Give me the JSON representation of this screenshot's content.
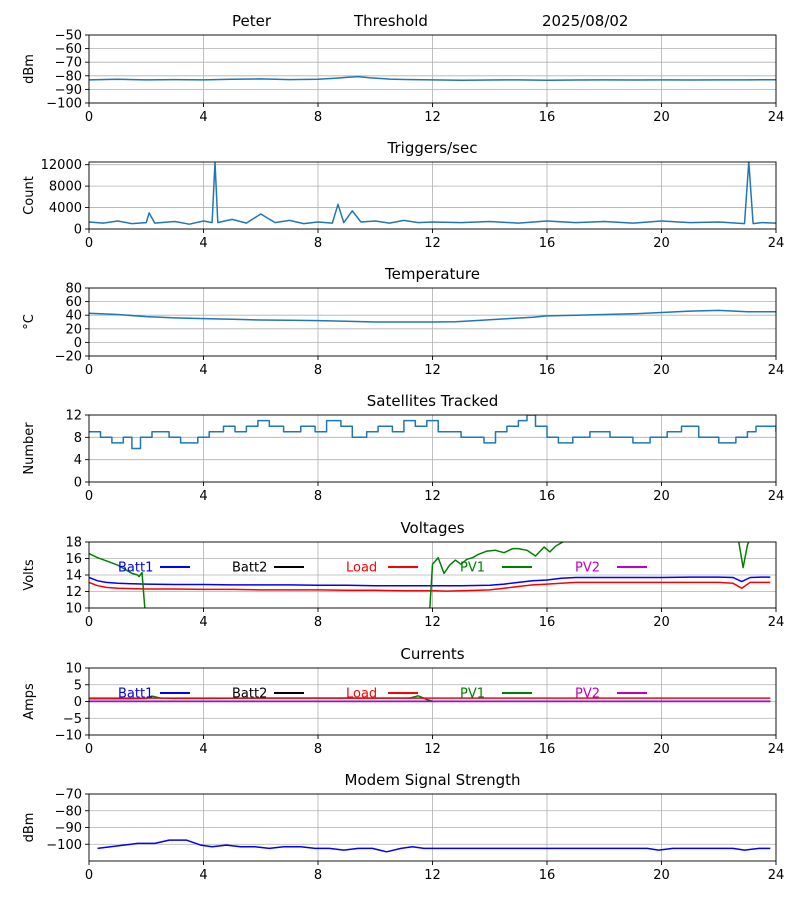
{
  "header": {
    "station": "Peter",
    "label": "Threshold",
    "date": "2025/08/02"
  },
  "colors": {
    "series_default": "#1f77b4",
    "grid": "#b0b0b0",
    "batt1": "#0000ff",
    "batt2": "#000000",
    "load": "#ff0000",
    "pv1": "#008000",
    "pv2": "#bf00bf"
  },
  "chart_data": [
    {
      "id": "threshold",
      "type": "line",
      "title": "",
      "xlabel": "",
      "ylabel": "dBm",
      "xlim": [
        0,
        24
      ],
      "ylim": [
        -100,
        -50
      ],
      "xticks": [
        0,
        4,
        8,
        12,
        16,
        20,
        24
      ],
      "yticks": [
        -100,
        -90,
        -80,
        -70,
        -60,
        -50
      ],
      "ytick_labels": [
        "−100",
        "−90",
        "−80",
        "−70",
        "−60",
        "−50"
      ],
      "grid": true,
      "series": [
        {
          "color": "#1f77b4",
          "width": 1.5,
          "x": [
            0,
            1,
            2,
            3,
            4,
            5,
            6,
            7,
            8,
            8.6,
            9.0,
            9.4,
            9.8,
            10.5,
            11,
            12,
            13,
            14,
            15,
            16,
            17,
            18,
            19,
            20,
            21,
            22,
            23,
            24
          ],
          "y": [
            -83,
            -82.6,
            -83,
            -82.8,
            -83,
            -82.5,
            -82.3,
            -82.8,
            -82.5,
            -81.8,
            -81.2,
            -80.6,
            -81.5,
            -82.4,
            -82.7,
            -83,
            -83.2,
            -83.1,
            -83,
            -83.2,
            -83.1,
            -83,
            -83.1,
            -83,
            -83.1,
            -83,
            -83,
            -82.9
          ]
        }
      ]
    },
    {
      "id": "triggers",
      "type": "line",
      "title": "Triggers/sec",
      "xlabel": "",
      "ylabel": "Count",
      "xlim": [
        0,
        24
      ],
      "ylim": [
        0,
        12500
      ],
      "xticks": [
        0,
        4,
        8,
        12,
        16,
        20,
        24
      ],
      "yticks": [
        0,
        4000,
        8000,
        12000
      ],
      "ytick_labels": [
        "0",
        "4000",
        "8000",
        "12000"
      ],
      "grid": true,
      "series": [
        {
          "color": "#1f77b4",
          "width": 1.5,
          "x": [
            0,
            0.5,
            1,
            1.5,
            2,
            2.1,
            2.3,
            3,
            3.5,
            4,
            4.3,
            4.4,
            4.5,
            5,
            5.5,
            6,
            6.5,
            7,
            7.5,
            8,
            8.5,
            8.7,
            8.9,
            9.2,
            9.5,
            10,
            10.5,
            11,
            11.5,
            12,
            13,
            14,
            15,
            16,
            17,
            18,
            19,
            20,
            21,
            22,
            22.9,
            23.05,
            23.2,
            23.5,
            24
          ],
          "y": [
            1300,
            1100,
            1500,
            1000,
            1200,
            3000,
            1100,
            1400,
            900,
            1500,
            1200,
            12500,
            1200,
            1800,
            1100,
            2800,
            1200,
            1600,
            1000,
            1300,
            1100,
            4600,
            1200,
            3400,
            1300,
            1500,
            1100,
            1600,
            1200,
            1300,
            1200,
            1400,
            1100,
            1500,
            1200,
            1400,
            1100,
            1500,
            1200,
            1300,
            1000,
            12500,
            1000,
            1200,
            1100
          ]
        }
      ]
    },
    {
      "id": "temperature",
      "type": "line",
      "title": "Temperature",
      "xlabel": "",
      "ylabel": "°C",
      "xlim": [
        0,
        24
      ],
      "ylim": [
        -20,
        80
      ],
      "xticks": [
        0,
        4,
        8,
        12,
        16,
        20,
        24
      ],
      "yticks": [
        -20,
        0,
        20,
        40,
        60,
        80
      ],
      "ytick_labels": [
        "−20",
        "0",
        "20",
        "40",
        "60",
        "80"
      ],
      "grid": true,
      "series": [
        {
          "color": "#1f77b4",
          "width": 1.5,
          "x": [
            0,
            1,
            2,
            3,
            4,
            5,
            6,
            7,
            8,
            9,
            10,
            11,
            12,
            12.8,
            13.5,
            14.5,
            15.5,
            16,
            17,
            18,
            19,
            20,
            21,
            22,
            23,
            24
          ],
          "y": [
            43,
            41,
            38,
            36,
            35,
            34,
            33,
            32.5,
            32,
            31,
            30,
            30,
            30,
            30.5,
            32,
            34.5,
            37,
            39,
            40,
            41,
            42,
            44,
            46,
            47,
            45,
            45
          ]
        }
      ]
    },
    {
      "id": "satellites",
      "type": "line",
      "title": "Satellites Tracked",
      "xlabel": "",
      "ylabel": "Number",
      "xlim": [
        0,
        24
      ],
      "ylim": [
        0,
        12
      ],
      "xticks": [
        0,
        4,
        8,
        12,
        16,
        20,
        24
      ],
      "yticks": [
        0,
        4,
        8,
        12
      ],
      "ytick_labels": [
        "0",
        "4",
        "8",
        "12"
      ],
      "grid": true,
      "series": [
        {
          "color": "#1f77b4",
          "width": 1.5,
          "step": true,
          "x": [
            0,
            0.4,
            0.8,
            1.2,
            1.5,
            1.8,
            2.2,
            2.8,
            3.2,
            3.8,
            4.2,
            4.7,
            5.1,
            5.5,
            5.9,
            6.3,
            6.8,
            7.4,
            7.9,
            8.3,
            8.8,
            9.2,
            9.7,
            10.1,
            10.6,
            11.0,
            11.4,
            11.8,
            12.2,
            13.0,
            13.8,
            14.2,
            14.6,
            15.0,
            15.3,
            15.6,
            16.0,
            16.4,
            16.9,
            17.5,
            18.2,
            19.0,
            19.6,
            20.2,
            20.7,
            21.3,
            22.0,
            22.6,
            23.0,
            23.3,
            24
          ],
          "y": [
            9,
            8,
            7,
            8,
            6,
            8,
            9,
            8,
            7,
            8,
            9,
            10,
            9,
            10,
            11,
            10,
            9,
            10,
            9,
            11,
            10,
            8,
            9,
            10,
            9,
            11,
            10,
            11,
            9,
            8,
            7,
            9,
            10,
            11,
            12,
            10,
            8,
            7,
            8,
            9,
            8,
            7,
            8,
            9,
            10,
            8,
            7,
            8,
            9,
            10,
            9
          ]
        }
      ]
    },
    {
      "id": "voltages",
      "type": "line",
      "title": "Voltages",
      "xlabel": "",
      "ylabel": "Volts",
      "xlim": [
        0,
        24
      ],
      "ylim": [
        10,
        18
      ],
      "xticks": [
        0,
        4,
        8,
        12,
        16,
        20,
        24
      ],
      "yticks": [
        10,
        12,
        14,
        16,
        18
      ],
      "ytick_labels": [
        "10",
        "12",
        "14",
        "16",
        "18"
      ],
      "grid": true,
      "legend": [
        "Batt1",
        "Batt2",
        "Load",
        "PV1",
        "PV2"
      ],
      "series": [
        {
          "name": "Batt1",
          "color": "#0000ff",
          "width": 1.5,
          "x": [
            0,
            0.3,
            0.6,
            1,
            1.5,
            2,
            3,
            4,
            5,
            6,
            7,
            8,
            9,
            10,
            11,
            12,
            13,
            14,
            14.5,
            15,
            15.5,
            16,
            16.5,
            17,
            18,
            19,
            20,
            21,
            22,
            22.5,
            22.8,
            23.1,
            23.5,
            23.8
          ],
          "y": [
            13.7,
            13.3,
            13.1,
            13.0,
            12.95,
            12.9,
            12.85,
            12.85,
            12.8,
            12.8,
            12.8,
            12.75,
            12.75,
            12.7,
            12.7,
            12.7,
            12.7,
            12.75,
            12.9,
            13.1,
            13.3,
            13.4,
            13.6,
            13.7,
            13.7,
            13.7,
            13.7,
            13.75,
            13.75,
            13.7,
            13.2,
            13.7,
            13.75,
            13.75
          ]
        },
        {
          "name": "Load",
          "color": "#ff0000",
          "width": 1.5,
          "x": [
            0,
            0.3,
            0.6,
            1,
            1.5,
            2,
            3,
            4,
            5,
            6,
            7,
            8,
            9,
            10,
            11,
            12,
            12.5,
            13,
            14,
            14.5,
            15,
            15.5,
            16,
            16.5,
            17,
            18,
            19,
            20,
            21,
            22,
            22.5,
            22.8,
            23.1,
            23.5,
            23.8
          ],
          "y": [
            13.1,
            12.7,
            12.5,
            12.4,
            12.35,
            12.3,
            12.3,
            12.25,
            12.25,
            12.2,
            12.2,
            12.2,
            12.15,
            12.15,
            12.1,
            12.1,
            12.05,
            12.1,
            12.2,
            12.4,
            12.6,
            12.8,
            12.9,
            13.0,
            13.1,
            13.1,
            13.1,
            13.1,
            13.1,
            13.1,
            13.0,
            12.4,
            13.1,
            13.1,
            13.1
          ]
        },
        {
          "name": "PV1",
          "color": "#008000",
          "width": 1.5,
          "clip": true,
          "x": [
            0,
            0.3,
            0.7,
            1.0,
            1.3,
            1.5,
            1.7,
            1.75,
            1.85,
            1.95
          ],
          "y": [
            16.6,
            16.1,
            15.6,
            15.2,
            14.6,
            14.2,
            14.0,
            13.8,
            14.3,
            10.0
          ]
        },
        {
          "name": "PV1",
          "color": "#008000",
          "width": 1.5,
          "clip": true,
          "x": [
            11.9,
            12.0,
            12.2,
            12.4,
            12.6,
            12.8,
            13.0,
            13.2,
            13.4,
            13.6,
            13.9,
            14.2,
            14.5,
            14.8,
            15.0,
            15.3,
            15.6,
            15.9,
            16.1,
            16.3,
            16.6,
            16.9,
            17.2
          ],
          "y": [
            9.5,
            15.3,
            16.1,
            14.2,
            15.2,
            15.8,
            15.3,
            15.9,
            16.1,
            16.5,
            16.9,
            17.0,
            16.7,
            17.2,
            17.2,
            17.0,
            16.3,
            17.4,
            16.8,
            17.5,
            18.1,
            18.5,
            19.0
          ]
        },
        {
          "name": "PV1",
          "color": "#008000",
          "width": 1.5,
          "clip": true,
          "x": [
            22.55,
            22.7,
            22.85,
            23.0,
            23.15
          ],
          "y": [
            19.0,
            18.0,
            14.9,
            17.6,
            19.0
          ]
        }
      ]
    },
    {
      "id": "currents",
      "type": "line",
      "title": "Currents",
      "xlabel": "",
      "ylabel": "Amps",
      "xlim": [
        0,
        24
      ],
      "ylim": [
        -10,
        10
      ],
      "xticks": [
        0,
        4,
        8,
        12,
        16,
        20,
        24
      ],
      "yticks": [
        -10,
        -5,
        0,
        5,
        10
      ],
      "ytick_labels": [
        "−10",
        "−5",
        "0",
        "5",
        "10"
      ],
      "grid": true,
      "legend": [
        "Batt1",
        "Batt2",
        "Load",
        "PV1",
        "PV2"
      ],
      "series": [
        {
          "name": "PV1",
          "color": "#008000",
          "width": 1.5,
          "x": [
            0,
            1,
            2,
            2.2,
            2.5,
            3,
            4,
            6,
            8,
            10,
            11.2,
            11.5,
            11.8,
            12,
            14,
            16,
            18,
            20,
            22,
            23.8
          ],
          "y": [
            0.8,
            0.8,
            0.9,
            1.6,
            1.0,
            0.9,
            0.9,
            1.0,
            1.0,
            1.0,
            1.0,
            1.7,
            0.6,
            0.1,
            0.1,
            0.1,
            0.1,
            0.1,
            0.1,
            0.1
          ]
        },
        {
          "name": "Load",
          "color": "#ff0000",
          "width": 1.5,
          "x": [
            0,
            4,
            8,
            12,
            16,
            20,
            23.8
          ],
          "y": [
            1.0,
            1.0,
            1.0,
            1.0,
            1.0,
            1.0,
            1.0
          ]
        },
        {
          "name": "Batt1",
          "color": "#0000ff",
          "width": 1.5,
          "x": [
            0,
            4,
            8,
            12,
            16,
            20,
            23.8
          ],
          "y": [
            0.1,
            0.1,
            0.1,
            0.1,
            0.1,
            0.1,
            0.1
          ]
        },
        {
          "name": "PV2",
          "color": "#bf00bf",
          "width": 1.5,
          "x": [
            0,
            4,
            8,
            12,
            16,
            20,
            23.8
          ],
          "y": [
            0.0,
            0.0,
            0.0,
            0.0,
            0.0,
            0.0,
            0.0
          ]
        }
      ]
    },
    {
      "id": "modem",
      "type": "line",
      "title": "Modem Signal Strength",
      "xlabel": "",
      "ylabel": "dBm",
      "xlim": [
        0,
        24
      ],
      "ylim": [
        -110,
        -70
      ],
      "xticks": [
        0,
        4,
        8,
        12,
        16,
        20,
        24
      ],
      "yticks": [
        -100,
        -90,
        -80,
        -70
      ],
      "ytick_labels": [
        "−100",
        "−90",
        "−80",
        "−70"
      ],
      "grid": true,
      "series": [
        {
          "name": "Modem",
          "color": "#0000ff",
          "width": 1.5,
          "x": [
            0.3,
            1,
            1.7,
            2.3,
            2.8,
            3.4,
            3.9,
            4.3,
            4.8,
            5.3,
            5.8,
            6.3,
            6.8,
            7.4,
            7.9,
            8.4,
            8.9,
            9.4,
            9.9,
            10.4,
            10.9,
            11.3,
            11.7,
            12.1,
            14,
            16,
            18,
            19.5,
            19.9,
            20.4,
            21,
            22,
            22.5,
            22.9,
            23.4,
            23.8
          ],
          "y": [
            -102.5,
            -101,
            -99.5,
            -99.5,
            -97.5,
            -97.5,
            -100.5,
            -101.5,
            -100.5,
            -101.5,
            -101.5,
            -102.5,
            -101.5,
            -101.5,
            -102.5,
            -102.5,
            -103.5,
            -102.5,
            -102.5,
            -104.5,
            -102.5,
            -101.5,
            -102.5,
            -102.5,
            -102.5,
            -102.5,
            -102.5,
            -102.5,
            -103.5,
            -102.5,
            -102.5,
            -102.5,
            -102.5,
            -103.5,
            -102.5,
            -102.5
          ]
        }
      ]
    }
  ]
}
